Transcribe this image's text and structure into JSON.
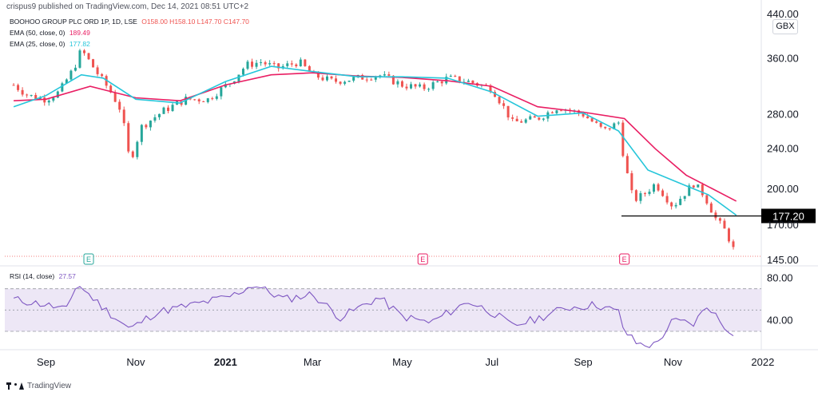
{
  "header": {
    "publisher_text": "crispus9 published on TradingView.com, Dec 14, 2021 08:51 UTC+2"
  },
  "legend": {
    "symbol": "BOOHOO GROUP PLC ORD 1P, 1D, LSE",
    "ohlc": "O158.00 H158.10 L147.70 C147.70",
    "ema50_label": "EMA (50, close, 0)",
    "ema50_value": "189.49",
    "ema25_label": "EMA (25, close, 0)",
    "ema25_value": "177.82",
    "rsi_label": "RSI (14, close)",
    "rsi_value": "27.57"
  },
  "currency": "GBX",
  "price_axis": {
    "ticks": [
      "145.00",
      "170.00",
      "200.00",
      "240.00",
      "280.00",
      "360.00",
      "440.00"
    ]
  },
  "rsi_axis": {
    "ticks": [
      "40.00",
      "80.00"
    ]
  },
  "x_axis": {
    "labels": [
      "Sep",
      "Nov",
      "2021",
      "Mar",
      "May",
      "Jul",
      "Sep",
      "Nov",
      "2022"
    ]
  },
  "level_label": "177.20",
  "earnings_marker": "E",
  "footer": {
    "brand": "TradingView"
  },
  "colors": {
    "up": "#26a69a",
    "down": "#ef5350",
    "ema50": "#e91e63",
    "ema25": "#26c6da",
    "rsi": "#7e57c2",
    "rsi_band": "#ede7f6",
    "level": "#000000",
    "marker": "#e91e63",
    "marker_green": "#26a69a"
  },
  "chart_data": {
    "type": "candlestick",
    "price_scale": "log",
    "price_range": [
      143,
      440
    ],
    "rsi_range": [
      15,
      90
    ],
    "rsi_bands": [
      30,
      50,
      70
    ],
    "horizontal_level": 177.2,
    "series": [
      {
        "name": "BOOHOO GROUP PLC ORD 1P, 1D, LSE",
        "x": [
          "2020-08-10",
          "2020-08-20",
          "2020-09-01",
          "2020-09-10",
          "2020-09-20",
          "2020-09-25",
          "2020-10-05",
          "2020-10-15",
          "2020-10-22",
          "2020-10-28",
          "2020-11-05",
          "2020-11-20",
          "2020-12-05",
          "2020-12-20",
          "2021-01-05",
          "2021-01-15",
          "2021-01-25",
          "2021-02-05",
          "2021-02-20",
          "2021-03-01",
          "2021-03-15",
          "2021-04-01",
          "2021-04-15",
          "2021-05-01",
          "2021-05-15",
          "2021-06-01",
          "2021-06-15",
          "2021-07-01",
          "2021-07-15",
          "2021-08-01",
          "2021-08-15",
          "2021-09-01",
          "2021-09-15",
          "2021-09-25",
          "2021-09-29",
          "2021-10-05",
          "2021-10-12",
          "2021-10-20",
          "2021-11-01",
          "2021-11-15",
          "2021-11-22",
          "2021-11-30",
          "2021-12-07",
          "2021-12-14"
        ],
        "close": [
          320,
          305,
          300,
          310,
          345,
          375,
          340,
          310,
          285,
          225,
          265,
          285,
          300,
          300,
          325,
          350,
          355,
          345,
          355,
          335,
          325,
          330,
          335,
          320,
          315,
          330,
          325,
          315,
          270,
          275,
          290,
          280,
          260,
          270,
          225,
          190,
          195,
          205,
          185,
          205,
          195,
          175,
          165,
          147.7
        ]
      },
      {
        "name": "EMA (50, close, 0)",
        "x": [
          "2020-08-10",
          "2020-09-01",
          "2020-10-01",
          "2020-11-01",
          "2020-12-01",
          "2021-01-01",
          "2021-02-01",
          "2021-03-01",
          "2021-04-01",
          "2021-05-01",
          "2021-06-01",
          "2021-07-01",
          "2021-08-01",
          "2021-09-01",
          "2021-09-29",
          "2021-10-20",
          "2021-11-10",
          "2021-12-14"
        ],
        "values": [
          298,
          300,
          318,
          302,
          298,
          320,
          335,
          338,
          333,
          331,
          326,
          318,
          290,
          283,
          275,
          240,
          213,
          189.49
        ]
      },
      {
        "name": "EMA (25, close, 0)",
        "x": [
          "2020-08-10",
          "2020-09-01",
          "2020-09-25",
          "2020-10-10",
          "2020-11-01",
          "2020-12-01",
          "2021-01-01",
          "2021-02-01",
          "2021-03-01",
          "2021-04-01",
          "2021-05-01",
          "2021-06-01",
          "2021-07-01",
          "2021-08-01",
          "2021-09-01",
          "2021-09-25",
          "2021-10-15",
          "2021-11-10",
          "2021-11-25",
          "2021-12-14"
        ],
        "values": [
          290,
          305,
          335,
          330,
          300,
          295,
          325,
          348,
          340,
          332,
          332,
          330,
          310,
          278,
          282,
          260,
          218,
          203,
          195,
          177.82
        ]
      },
      {
        "name": "RSI (14, close)",
        "x": [
          "2020-08-10",
          "2020-09-01",
          "2020-09-15",
          "2020-09-22",
          "2020-10-10",
          "2020-10-28",
          "2020-11-15",
          "2020-12-10",
          "2021-01-05",
          "2021-01-20",
          "2021-02-10",
          "2021-03-01",
          "2021-03-20",
          "2021-04-15",
          "2021-05-01",
          "2021-05-20",
          "2021-06-15",
          "2021-07-01",
          "2021-07-15",
          "2021-08-01",
          "2021-08-20",
          "2021-09-10",
          "2021-09-25",
          "2021-09-29",
          "2021-10-08",
          "2021-10-20",
          "2021-11-01",
          "2021-11-15",
          "2021-11-25",
          "2021-12-05",
          "2021-12-14"
        ],
        "values": [
          60,
          55,
          50,
          75,
          52,
          32,
          48,
          55,
          63,
          74,
          60,
          65,
          43,
          62,
          44,
          38,
          58,
          48,
          35,
          42,
          52,
          55,
          48,
          30,
          18,
          17,
          40,
          37,
          55,
          35,
          27.57
        ]
      }
    ],
    "earnings_dates": [
      "2020-09-30",
      "2021-05-15",
      "2021-09-29"
    ]
  }
}
